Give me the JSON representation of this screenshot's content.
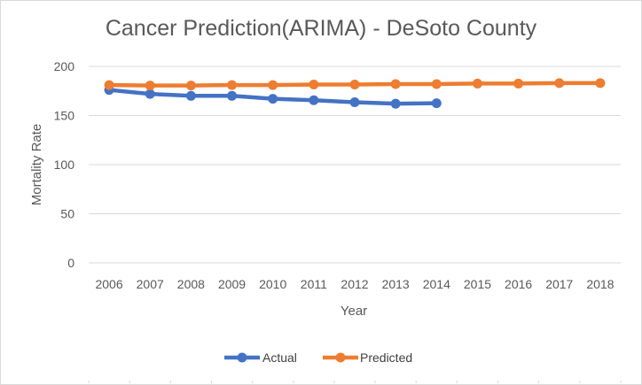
{
  "chart_data": {
    "type": "line",
    "title": "Cancer Prediction(ARIMA) - DeSoto County",
    "xlabel": "Year",
    "ylabel": "Mortality Rate",
    "ylim": [
      0,
      200
    ],
    "yticks": [
      0,
      50,
      100,
      150,
      200
    ],
    "categories": [
      "2006",
      "2007",
      "2008",
      "2009",
      "2010",
      "2011",
      "2012",
      "2013",
      "2014",
      "2015",
      "2016",
      "2017",
      "2018"
    ],
    "grid": "horizontal",
    "legend": "bottom",
    "series": [
      {
        "name": "Actual",
        "color": "#4472c4",
        "values": [
          176,
          172,
          170,
          170,
          167,
          165.5,
          163.5,
          162,
          162.5,
          null,
          null,
          null,
          null
        ]
      },
      {
        "name": "Predicted",
        "color": "#ed7d31",
        "values": [
          181,
          180.5,
          180.5,
          181,
          181,
          181.5,
          181.5,
          182,
          182,
          182.5,
          182.5,
          183,
          183
        ]
      }
    ]
  }
}
